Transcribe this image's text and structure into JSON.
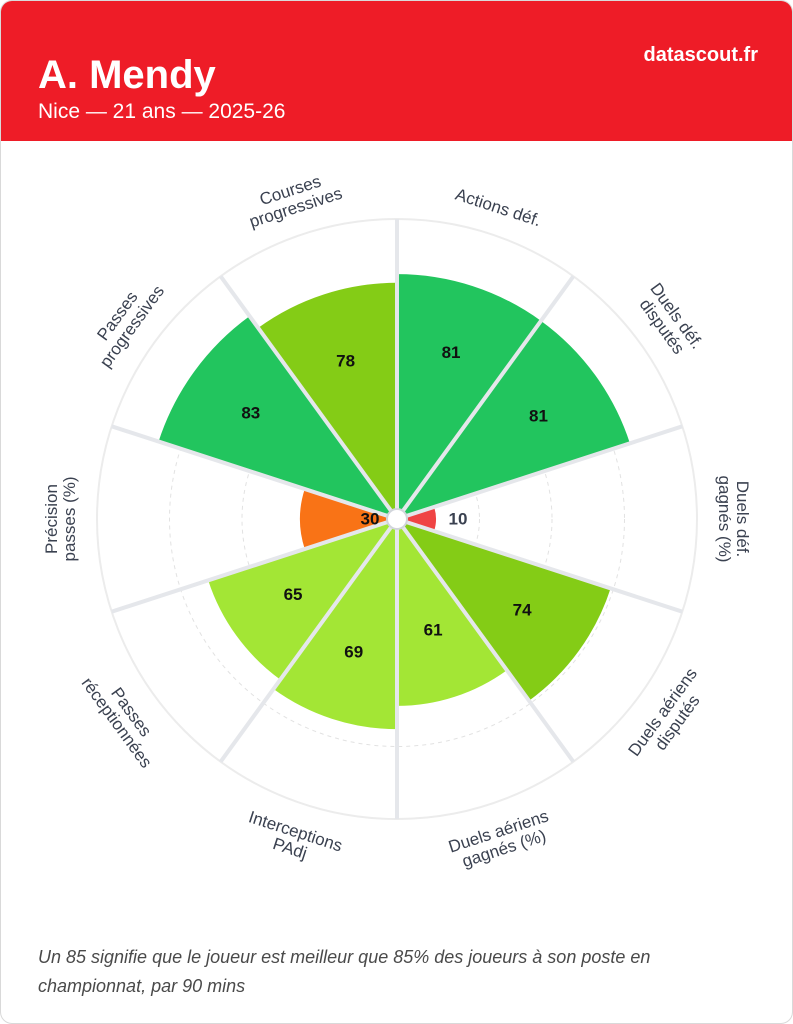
{
  "header": {
    "player_name": "A. Mendy",
    "subtitle": "Nice — 21 ans — 2025-26",
    "brand": "datascout.fr"
  },
  "chart_data": {
    "type": "polar-bar",
    "rmax": 100,
    "categories": [
      "Actions déf.",
      "Duels déf. disputés",
      "Duels déf. gagnés (%)",
      "Duels aériens disputés",
      "Duels aériens gagnés (%)",
      "Interceptions PAdj",
      "Passes réceptionnées",
      "Précision passes (%)",
      "Passes progressives",
      "Courses progressives"
    ],
    "category_label_lines": [
      [
        "Actions déf."
      ],
      [
        "Duels déf.",
        "disputés"
      ],
      [
        "Duels déf.",
        "gagnés (%)"
      ],
      [
        "Duels aériens",
        "disputés"
      ],
      [
        "Duels aériens",
        "gagnés (%)"
      ],
      [
        "Interceptions",
        "PAdj"
      ],
      [
        "Passes",
        "réceptionnées"
      ],
      [
        "Précision",
        "passes (%)"
      ],
      [
        "Passes",
        "progressives"
      ],
      [
        "Courses",
        "progressives"
      ]
    ],
    "values": [
      81,
      81,
      10,
      74,
      61,
      69,
      65,
      30,
      83,
      78
    ],
    "colors": [
      "#22c55e",
      "#22c55e",
      "#ef4444",
      "#84cc16",
      "#a3e635",
      "#a3e635",
      "#a3e635",
      "#f97316",
      "#22c55e",
      "#84cc16"
    ],
    "grid": true
  },
  "footnote": "Un 85 signifie que le joueur est meilleur que 85% des joueurs à son poste en championnat, par 90 mins"
}
